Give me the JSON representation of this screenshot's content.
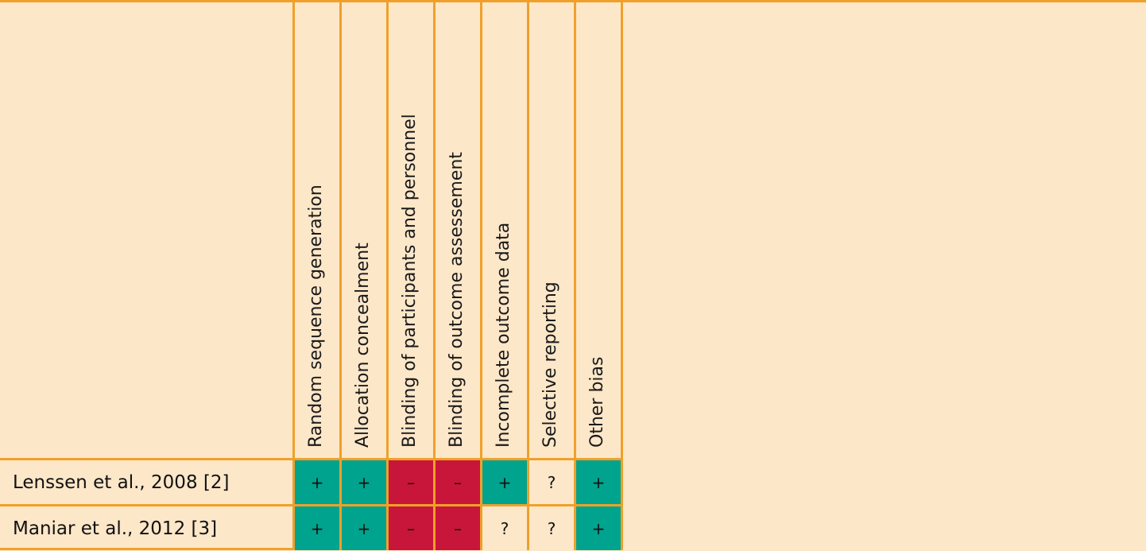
{
  "domains": [
    "Random sequence generation",
    "Allocation concealment",
    "Blinding of participants and personnel",
    "Blinding of outcome assessement",
    "Incomplete outcome data",
    "Selective reporting",
    "Other bias"
  ],
  "studies": [
    {
      "name": "Lenssen et al., 2008 [2]",
      "ratings": [
        "+",
        "+",
        "–",
        "–",
        "+",
        "?",
        "+"
      ],
      "levels": [
        "low",
        "low",
        "high",
        "high",
        "low",
        "unclear",
        "low"
      ]
    },
    {
      "name": "Maniar et al., 2012 [3]",
      "ratings": [
        "+",
        "+",
        "–",
        "–",
        "?",
        "?",
        "+"
      ],
      "levels": [
        "low",
        "low",
        "high",
        "high",
        "unclear",
        "unclear",
        "low"
      ]
    }
  ],
  "colors": {
    "background": "#fde7c9",
    "grid": "#f0a02a",
    "low": "#00a38d",
    "high": "#c8153a",
    "unclear": "#fde7c9"
  }
}
